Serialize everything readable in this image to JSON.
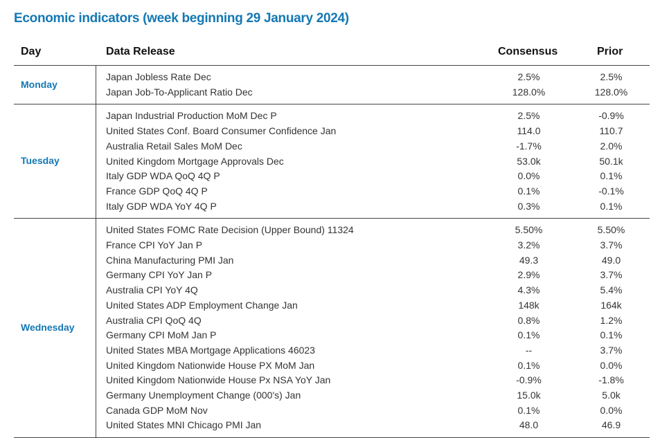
{
  "title": "Economic indicators (week beginning 29 January 2024)",
  "headers": {
    "day": "Day",
    "release": "Data Release",
    "consensus": "Consensus",
    "prior": "Prior"
  },
  "groups": [
    {
      "day": "Monday",
      "rows": [
        {
          "release": "Japan Jobless Rate Dec",
          "consensus": "2.5%",
          "prior": "2.5%"
        },
        {
          "release": "Japan Job-To-Applicant Ratio Dec",
          "consensus": "128.0%",
          "prior": "128.0%"
        }
      ]
    },
    {
      "day": "Tuesday",
      "rows": [
        {
          "release": "Japan Industrial Production MoM Dec P",
          "consensus": "2.5%",
          "prior": "-0.9%"
        },
        {
          "release": "United States Conf. Board Consumer Confidence Jan",
          "consensus": "114.0",
          "prior": "110.7"
        },
        {
          "release": "Australia Retail Sales MoM Dec",
          "consensus": "-1.7%",
          "prior": "2.0%"
        },
        {
          "release": "United Kingdom Mortgage Approvals Dec",
          "consensus": "53.0k",
          "prior": "50.1k"
        },
        {
          "release": "Italy GDP WDA QoQ 4Q P",
          "consensus": "0.0%",
          "prior": "0.1%"
        },
        {
          "release": "France GDP QoQ 4Q P",
          "consensus": "0.1%",
          "prior": "-0.1%"
        },
        {
          "release": "Italy GDP WDA YoY 4Q P",
          "consensus": "0.3%",
          "prior": "0.1%"
        }
      ]
    },
    {
      "day": "Wednesday",
      "rows": [
        {
          "release": "United States FOMC Rate Decision (Upper Bound) 11324",
          "consensus": "5.50%",
          "prior": "5.50%"
        },
        {
          "release": "France CPI YoY Jan P",
          "consensus": "3.2%",
          "prior": "3.7%"
        },
        {
          "release": "China Manufacturing PMI Jan",
          "consensus": "49.3",
          "prior": "49.0"
        },
        {
          "release": "Germany CPI YoY Jan P",
          "consensus": "2.9%",
          "prior": "3.7%"
        },
        {
          "release": "Australia CPI YoY 4Q",
          "consensus": "4.3%",
          "prior": "5.4%"
        },
        {
          "release": "United States ADP Employment Change Jan",
          "consensus": "148k",
          "prior": "164k"
        },
        {
          "release": "Australia CPI QoQ 4Q",
          "consensus": "0.8%",
          "prior": "1.2%"
        },
        {
          "release": "Germany CPI MoM Jan P",
          "consensus": "0.1%",
          "prior": "0.1%"
        },
        {
          "release": "United States MBA Mortgage Applications 46023",
          "consensus": "--",
          "prior": "3.7%"
        },
        {
          "release": "United Kingdom Nationwide House PX MoM Jan",
          "consensus": "0.1%",
          "prior": "0.0%"
        },
        {
          "release": "United Kingdom Nationwide House Px NSA YoY Jan",
          "consensus": "-0.9%",
          "prior": "-1.8%"
        },
        {
          "release": "Germany Unemployment Change (000's) Jan",
          "consensus": "15.0k",
          "prior": "5.0k"
        },
        {
          "release": "Canada GDP MoM Nov",
          "consensus": "0.1%",
          "prior": "0.0%"
        },
        {
          "release": "United States MNI Chicago PMI Jan",
          "consensus": "48.0",
          "prior": "46.9"
        }
      ]
    }
  ],
  "colors": {
    "accent": "#1478b4",
    "text": "#333333",
    "rule": "#444444"
  }
}
